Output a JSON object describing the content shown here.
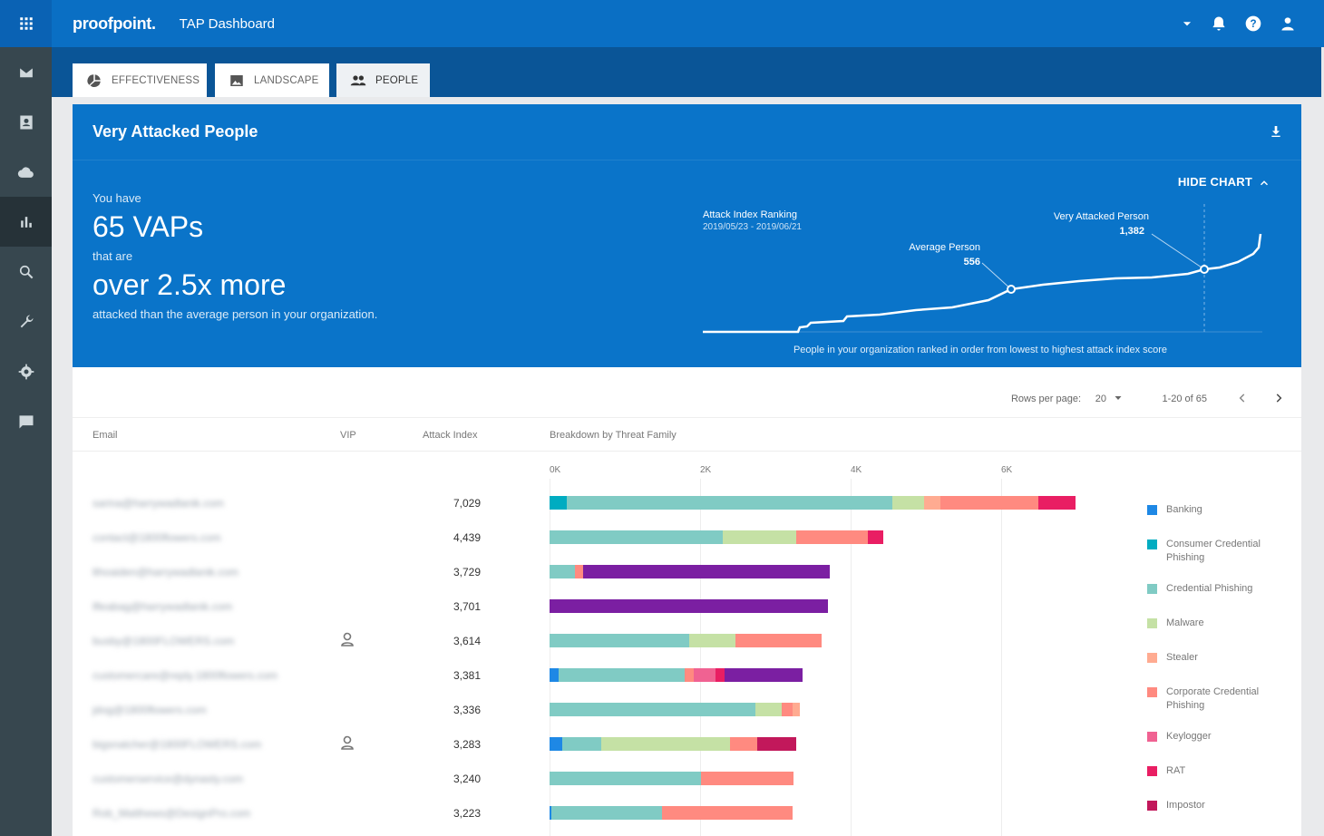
{
  "app": {
    "brand": "proofpoint.",
    "title": "TAP Dashboard"
  },
  "nav_icons": [
    "apps-icon",
    "mail-icon",
    "contact-icon",
    "cloud-icon",
    "bar-chart-icon",
    "search-icon",
    "wrench-icon",
    "gear-icon",
    "message-icon"
  ],
  "tabs": [
    {
      "label": "EFFECTIVENESS",
      "icon": "pie-chart-icon"
    },
    {
      "label": "LANDSCAPE",
      "icon": "image-icon"
    },
    {
      "label": "PEOPLE",
      "icon": "people-icon",
      "active": true
    }
  ],
  "hero": {
    "title": "Very Attacked People",
    "hide_chart": "HIDE CHART",
    "you_have": "You have",
    "vap_count": "65 VAPs",
    "that_are": "that are",
    "multiplier": "over 2.5x more",
    "tail": "attacked than the average person in your organization.",
    "chart": {
      "title": "Attack Index Ranking",
      "dates": "2019/05/23 - 2019/06/21",
      "avg_label": "Average Person",
      "avg_value": "556",
      "vap_label": "Very Attacked Person",
      "vap_value": "1,382",
      "caption": "People in your organization ranked in order from lowest to highest attack index score"
    }
  },
  "pagination": {
    "rows_label": "Rows per page:",
    "rows_value": "20",
    "range": "1-20 of 65"
  },
  "columns": {
    "email": "Email",
    "vip": "VIP",
    "attack_index": "Attack Index",
    "breakdown": "Breakdown by Threat Family"
  },
  "axis_ticks": [
    "0K",
    "2K",
    "4K",
    "6K"
  ],
  "colors": {
    "Banking": "#1e88e5",
    "Consumer Credential Phishing": "#00acc1",
    "Credential Phishing": "#80cbc4",
    "Malware": "#c5e1a5",
    "Stealer": "#ffab91",
    "Corporate Credential Phishing": "#ff8a80",
    "Keylogger": "#f06292",
    "RAT": "#e91e63",
    "Impostor": "#c2185b",
    "Purple": "#7b1fa2"
  },
  "legend": [
    "Banking",
    "Consumer Credential Phishing",
    "Credential Phishing",
    "Malware",
    "Stealer",
    "Corporate Credential Phishing",
    "Keylogger",
    "RAT",
    "Impostor"
  ],
  "rows": [
    {
      "email": "sarina@harrywadlanik.com",
      "vip": false,
      "ai": "7,029",
      "segments": [
        [
          "Consumer Credential Phishing",
          230
        ],
        [
          "Credential Phishing",
          4320
        ],
        [
          "Malware",
          430
        ],
        [
          "Stealer",
          210
        ],
        [
          "Corporate Credential Phishing",
          1300
        ],
        [
          "RAT",
          500
        ]
      ]
    },
    {
      "email": "contact@1800flowers.com",
      "vip": false,
      "ai": "4,439",
      "segments": [
        [
          "Credential Phishing",
          2300
        ],
        [
          "Malware",
          980
        ],
        [
          "Corporate Credential Phishing",
          950
        ],
        [
          "RAT",
          200
        ]
      ]
    },
    {
      "email": "lthoaiden@harrywadlanik.com",
      "vip": false,
      "ai": "3,729",
      "segments": [
        [
          "Credential Phishing",
          340
        ],
        [
          "Corporate Credential Phishing",
          110
        ],
        [
          "Purple",
          3270
        ]
      ]
    },
    {
      "email": "lfleabag@harrywadlanik.com",
      "vip": false,
      "ai": "3,701",
      "segments": [
        [
          "Purple",
          3700
        ]
      ]
    },
    {
      "email": "busby@1800FLOWERS.com",
      "vip": true,
      "ai": "3,614",
      "segments": [
        [
          "Credential Phishing",
          1850
        ],
        [
          "Malware",
          620
        ],
        [
          "Corporate Credential Phishing",
          1140
        ]
      ]
    },
    {
      "email": "customercare@reply.1800flowers.com",
      "vip": false,
      "ai": "3,381",
      "segments": [
        [
          "Banking",
          120
        ],
        [
          "Credential Phishing",
          1670
        ],
        [
          "Corporate Credential Phishing",
          130
        ],
        [
          "Keylogger",
          280
        ],
        [
          "RAT",
          130
        ],
        [
          "Purple",
          1030
        ]
      ]
    },
    {
      "email": "jdog@1800flowers.com",
      "vip": false,
      "ai": "3,336",
      "segments": [
        [
          "Credential Phishing",
          2740
        ],
        [
          "Malware",
          350
        ],
        [
          "Corporate Credential Phishing",
          140
        ],
        [
          "Stealer",
          100
        ]
      ]
    },
    {
      "email": "bigsnatcher@1800FLOWERS.com",
      "vip": true,
      "ai": "3,283",
      "segments": [
        [
          "Banking",
          170
        ],
        [
          "Credential Phishing",
          520
        ],
        [
          "Malware",
          1710
        ],
        [
          "Corporate Credential Phishing",
          360
        ],
        [
          "Impostor",
          520
        ]
      ]
    },
    {
      "email": "customerservice@dynasty.com",
      "vip": false,
      "ai": "3,240",
      "segments": [
        [
          "Credential Phishing",
          2010
        ],
        [
          "Corporate Credential Phishing",
          1230
        ]
      ]
    },
    {
      "email": "Rob_Matthews@DesignPro.com",
      "vip": false,
      "ai": "3,223",
      "segments": [
        [
          "Banking",
          30
        ],
        [
          "Credential Phishing",
          1470
        ],
        [
          "Corporate Credential Phishing",
          1730
        ]
      ]
    }
  ]
}
